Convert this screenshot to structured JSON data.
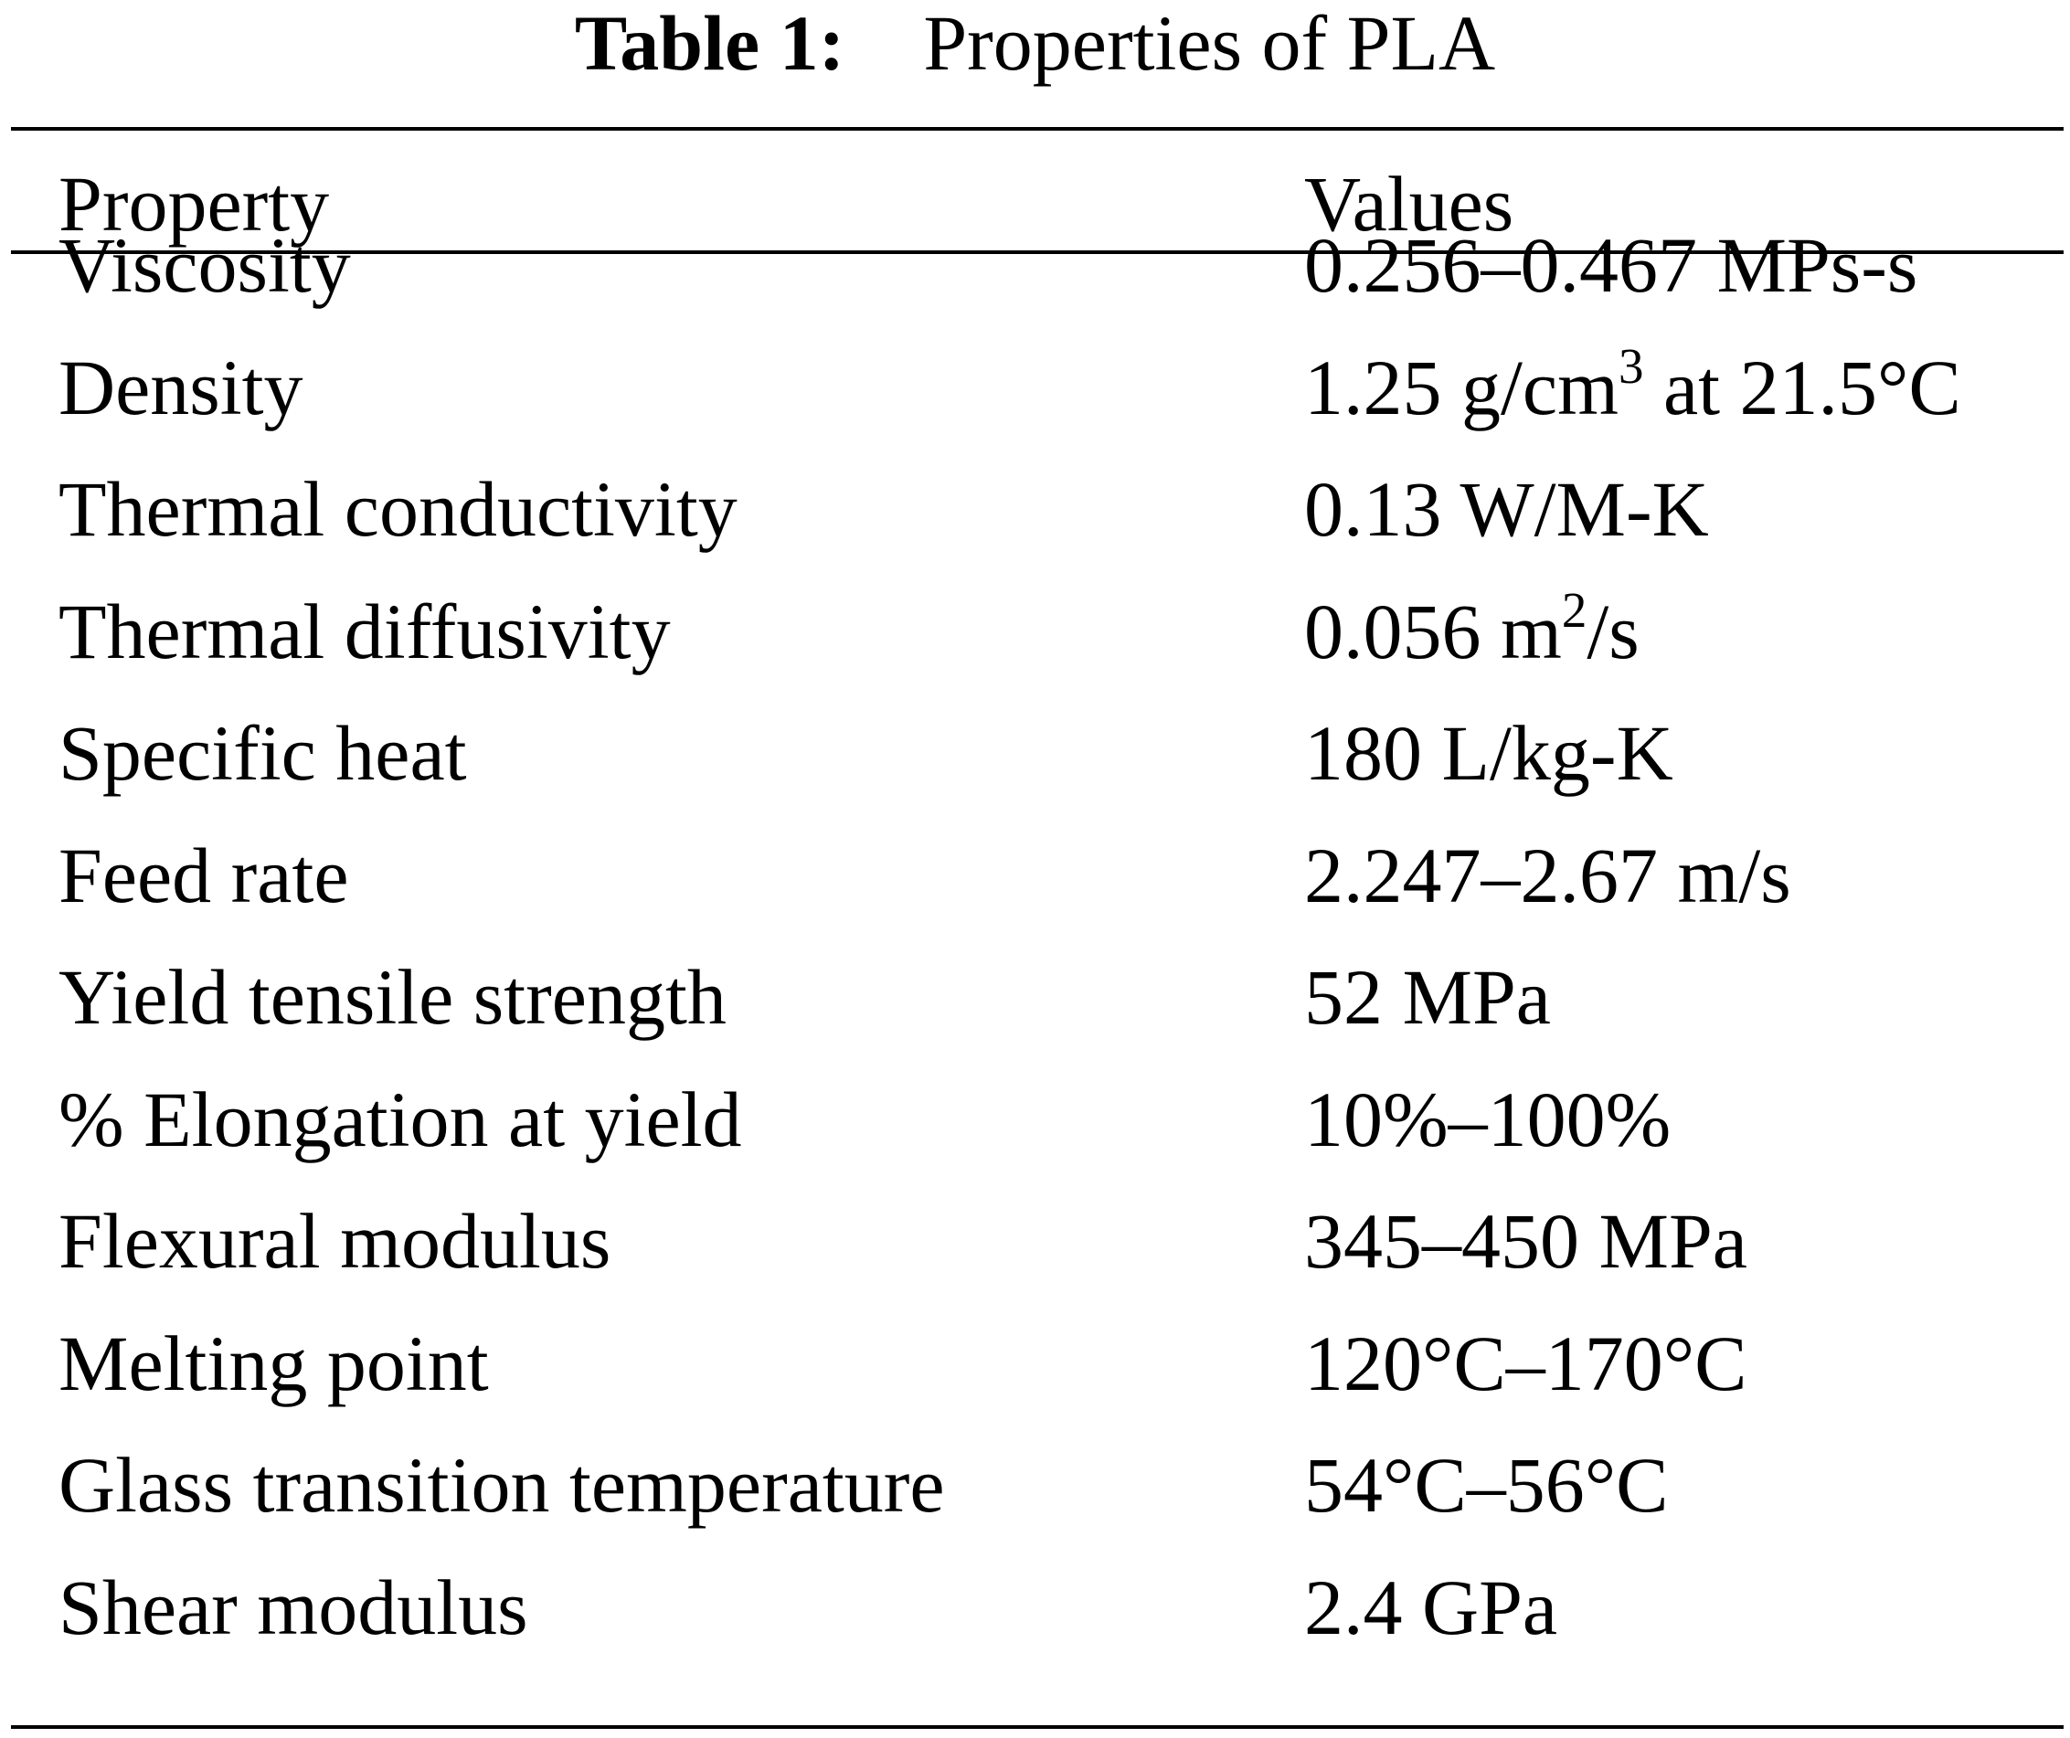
{
  "caption": {
    "label": "Table 1:",
    "text": "Properties of PLA"
  },
  "table": {
    "headers": {
      "property": "Property",
      "values": "Values"
    },
    "rows": [
      {
        "property": "Viscosity",
        "value": {
          "pre": "0.256–0.467 MPs-s",
          "sup": "",
          "post": ""
        }
      },
      {
        "property": "Density",
        "value": {
          "pre": "1.25 g/cm",
          "sup": "3",
          "post": " at 21.5°C"
        }
      },
      {
        "property": "Thermal conductivity",
        "value": {
          "pre": "0.13 W/M-K",
          "sup": "",
          "post": ""
        }
      },
      {
        "property": "Thermal diffusivity",
        "value": {
          "pre": "0.056 m",
          "sup": "2",
          "post": "/s"
        }
      },
      {
        "property": "Specific heat",
        "value": {
          "pre": "180 L/kg-K",
          "sup": "",
          "post": ""
        }
      },
      {
        "property": "Feed rate",
        "value": {
          "pre": "2.247–2.67 m/s",
          "sup": "",
          "post": ""
        }
      },
      {
        "property": "Yield tensile strength",
        "value": {
          "pre": "52 MPa",
          "sup": "",
          "post": ""
        }
      },
      {
        "property": "% Elongation at yield",
        "value": {
          "pre": "10%–100%",
          "sup": "",
          "post": ""
        }
      },
      {
        "property": "Flexural modulus",
        "value": {
          "pre": "345–450 MPa",
          "sup": "",
          "post": ""
        }
      },
      {
        "property": "Melting point",
        "value": {
          "pre": "120°C–170°C",
          "sup": "",
          "post": ""
        }
      },
      {
        "property": "Glass transition temperature",
        "value": {
          "pre": "54°C–56°C",
          "sup": "",
          "post": ""
        }
      },
      {
        "property": "Shear modulus",
        "value": {
          "pre": "2.4 GPa",
          "sup": "",
          "post": ""
        }
      }
    ]
  }
}
